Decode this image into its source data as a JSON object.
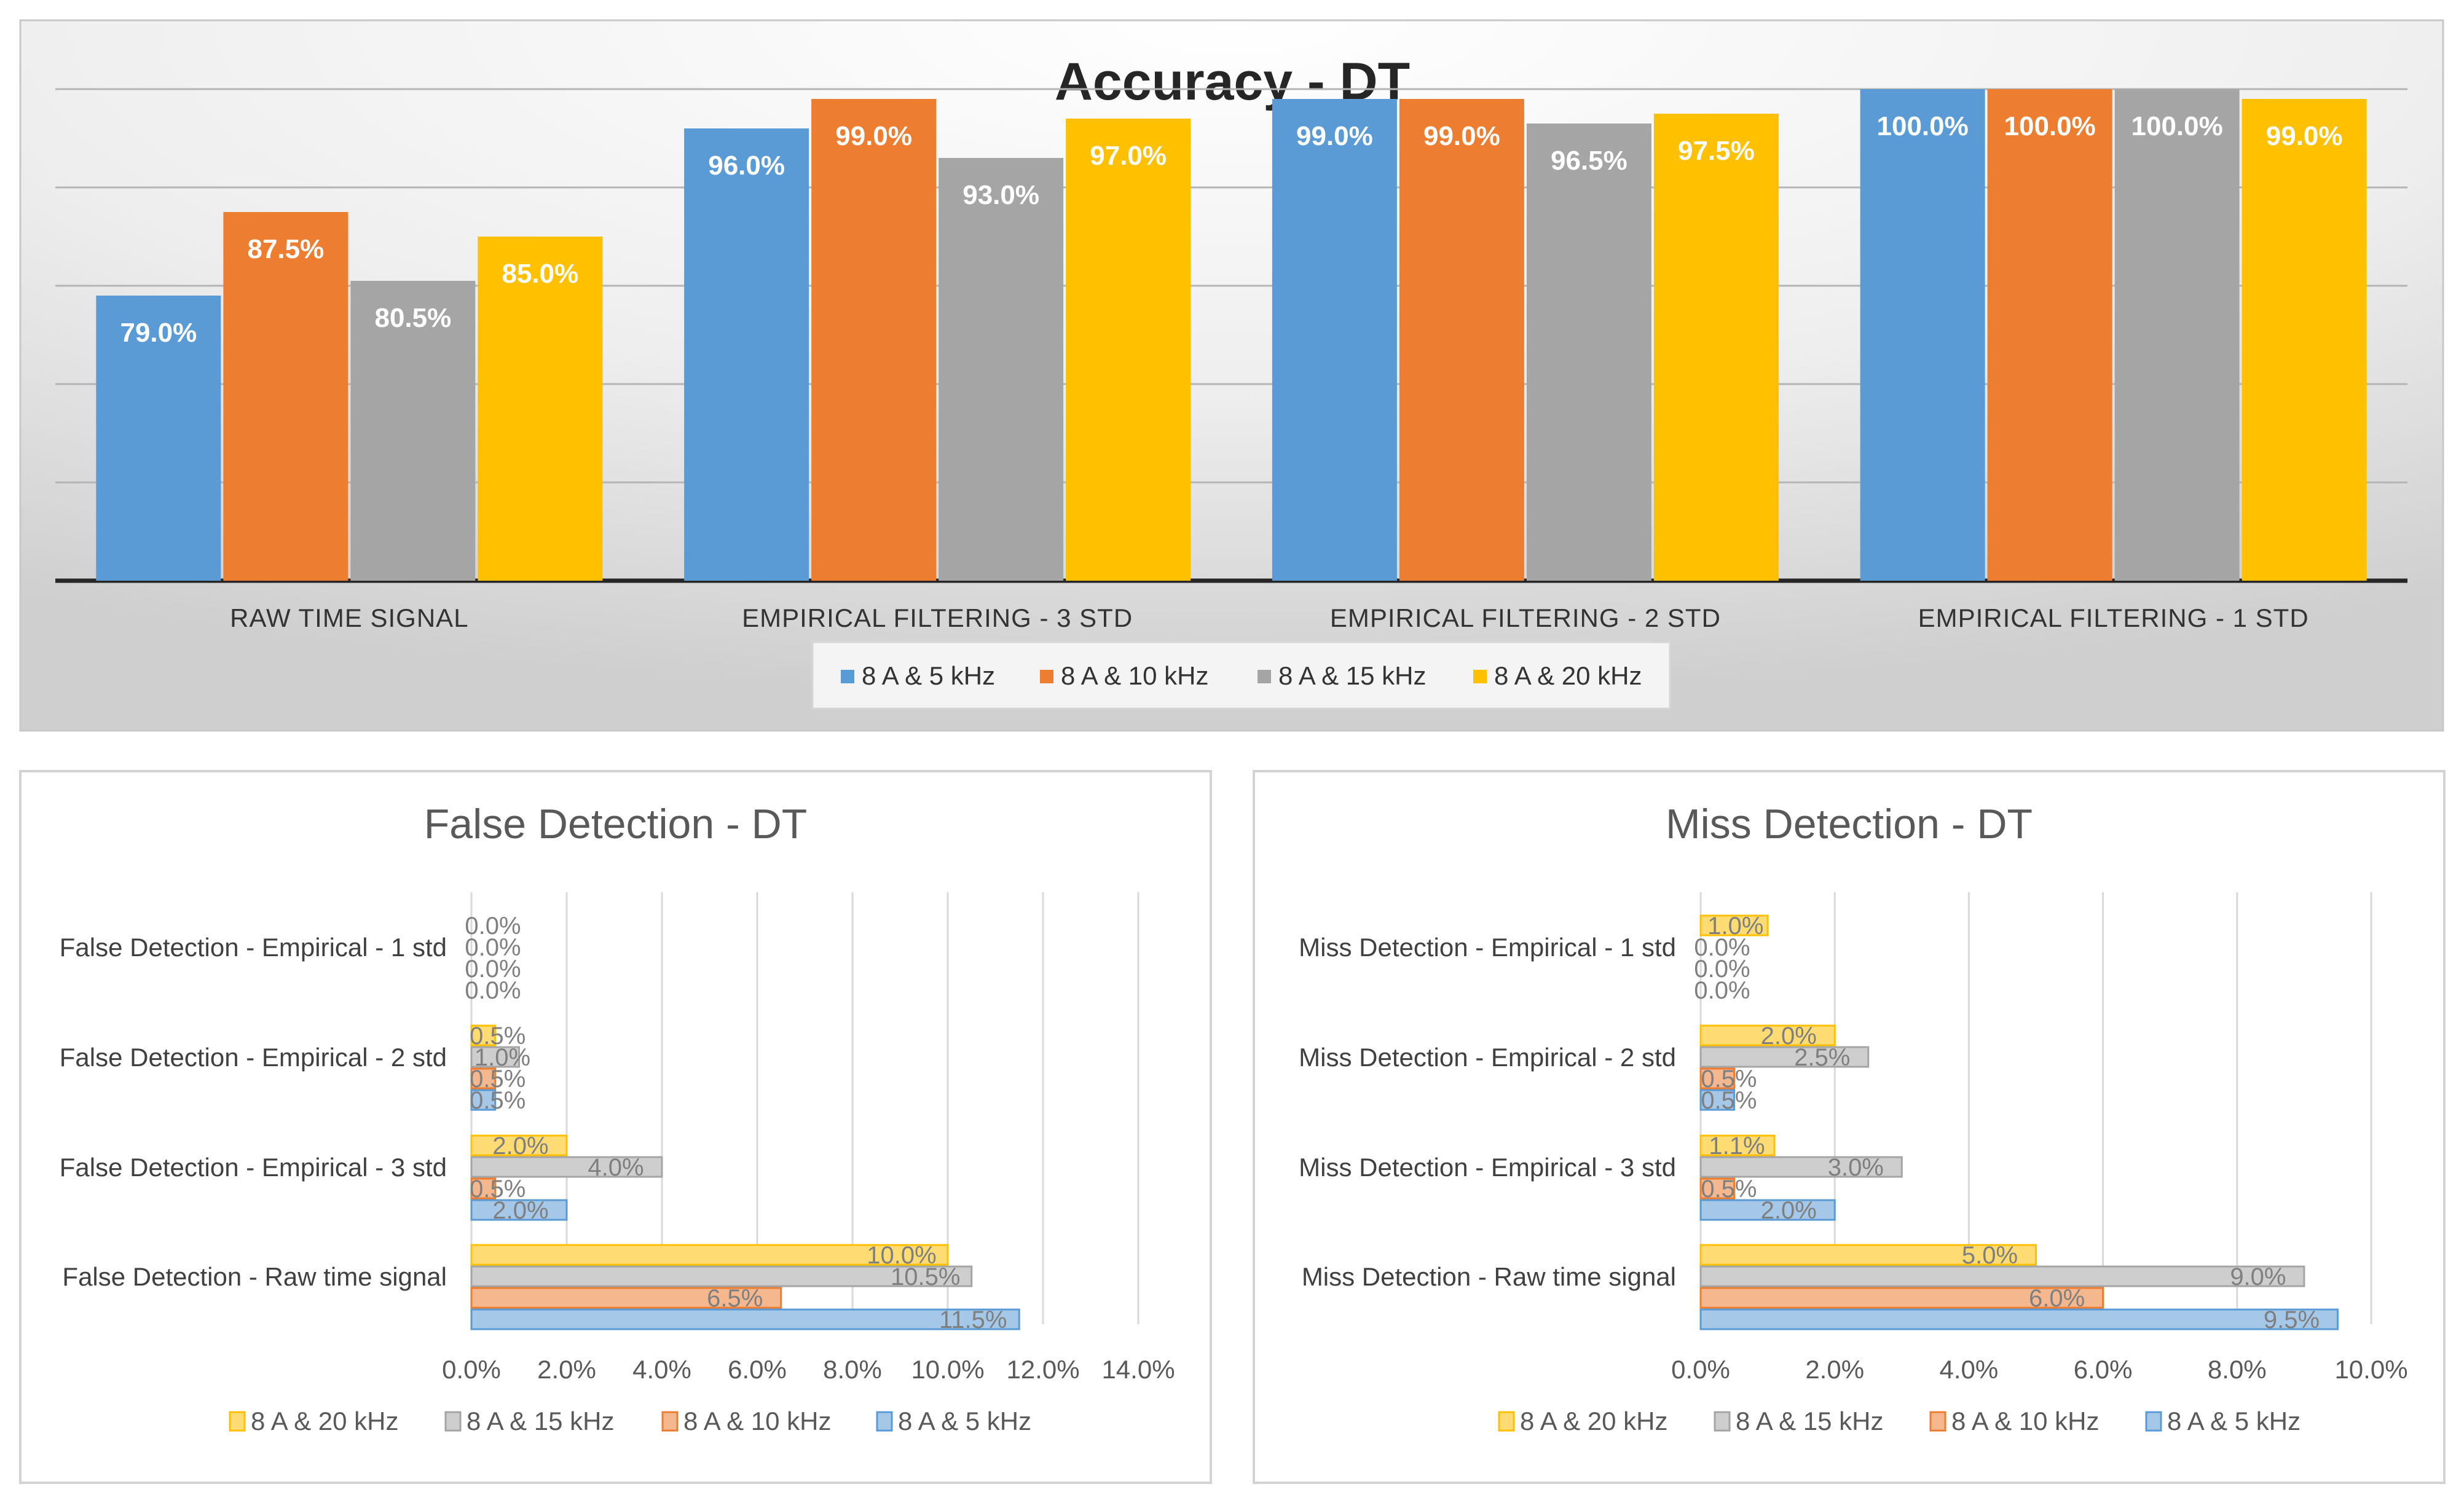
{
  "colors": {
    "blue": "#5B9BD5",
    "orange": "#ED7D31",
    "gray": "#A5A5A5",
    "yellow": "#FFC000",
    "grid": "#d0d0d0",
    "axis": "#333333"
  },
  "chart_data": [
    {
      "type": "bar",
      "orientation": "vertical",
      "title": "Accuracy - DT",
      "categories": [
        "RAW TIME SIGNAL",
        "EMPIRICAL FILTERING - 3 STD",
        "EMPIRICAL FILTERING - 2 STD",
        "EMPIRICAL FILTERING - 1 STD"
      ],
      "series": [
        {
          "name": "8 A & 5 kHz",
          "color": "#5B9BD5",
          "values": [
            79.0,
            96.0,
            99.0,
            100.0
          ]
        },
        {
          "name": "8 A & 10 kHz",
          "color": "#ED7D31",
          "values": [
            87.5,
            99.0,
            99.0,
            100.0
          ]
        },
        {
          "name": "8 A & 15 kHz",
          "color": "#A5A5A5",
          "values": [
            80.5,
            93.0,
            96.5,
            100.0
          ]
        },
        {
          "name": "8 A & 20 kHz",
          "color": "#FFC000",
          "values": [
            85.0,
            97.0,
            97.5,
            99.0
          ]
        }
      ],
      "labels": [
        [
          "79.0%",
          "96.0%",
          "99.0%",
          "100.0%"
        ],
        [
          "87.5%",
          "99.0%",
          "99.0%",
          "100.0%"
        ],
        [
          "80.5%",
          "93.0%",
          "96.5%",
          "100.0%"
        ],
        [
          "85.0%",
          "97.0%",
          "97.5%",
          "99.0%"
        ]
      ],
      "ylim": [
        50,
        100
      ],
      "grid": true,
      "legend": "bottom"
    },
    {
      "type": "bar",
      "orientation": "horizontal",
      "title": "False Detection  - DT",
      "categories": [
        "False Detection - Empirical - 1 std",
        "False Detection - Empirical - 2 std",
        "False Detection - Empirical - 3 std",
        "False Detection - Raw time signal"
      ],
      "series": [
        {
          "name": "8 A & 20 kHz",
          "color": "#FFC000",
          "values": [
            0.0,
            0.5,
            2.0,
            10.0
          ]
        },
        {
          "name": "8 A & 15 kHz",
          "color": "#A5A5A5",
          "values": [
            0.0,
            1.0,
            4.0,
            10.5
          ]
        },
        {
          "name": "8 A & 10 kHz",
          "color": "#ED7D31",
          "values": [
            0.0,
            0.5,
            0.5,
            6.5
          ]
        },
        {
          "name": "8 A & 5 kHz",
          "color": "#5B9BD5",
          "values": [
            0.0,
            0.5,
            2.0,
            11.5
          ]
        }
      ],
      "labels": [
        [
          "0.0%",
          "0.5%",
          "2.0%",
          "10.0%"
        ],
        [
          "0.0%",
          "1.0%",
          "4.0%",
          "10.5%"
        ],
        [
          "0.0%",
          "0.5%",
          "0.5%",
          "6.5%"
        ],
        [
          "0.0%",
          "0.5%",
          "2.0%",
          "11.5%"
        ]
      ],
      "xlim": [
        0,
        14
      ],
      "ticks": [
        "0.0%",
        "2.0%",
        "4.0%",
        "6.0%",
        "8.0%",
        "10.0%",
        "12.0%",
        "14.0%"
      ],
      "grid": true,
      "legend": "bottom"
    },
    {
      "type": "bar",
      "orientation": "horizontal",
      "title": "Miss Detection  - DT",
      "categories": [
        "Miss Detection - Empirical - 1 std",
        "Miss Detection - Empirical - 2 std",
        "Miss Detection - Empirical - 3 std",
        "Miss Detection - Raw time signal"
      ],
      "series": [
        {
          "name": "8 A & 20 kHz",
          "color": "#FFC000",
          "values": [
            1.0,
            2.0,
            1.1,
            5.0
          ]
        },
        {
          "name": "8 A & 15 kHz",
          "color": "#A5A5A5",
          "values": [
            0.0,
            2.5,
            3.0,
            9.0
          ]
        },
        {
          "name": "8 A & 10 kHz",
          "color": "#ED7D31",
          "values": [
            0.0,
            0.5,
            0.5,
            6.0
          ]
        },
        {
          "name": "8 A & 5 kHz",
          "color": "#5B9BD5",
          "values": [
            0.0,
            0.5,
            2.0,
            9.5
          ]
        }
      ],
      "labels": [
        [
          "1.0%",
          "2.0%",
          "1.1%",
          "5.0%"
        ],
        [
          "0.0%",
          "2.5%",
          "3.0%",
          "9.0%"
        ],
        [
          "0.0%",
          "0.5%",
          "0.5%",
          "6.0%"
        ],
        [
          "0.0%",
          "0.5%",
          "2.0%",
          "9.5%"
        ]
      ],
      "xlim": [
        0,
        10
      ],
      "ticks": [
        "0.0%",
        "2.0%",
        "4.0%",
        "6.0%",
        "8.0%",
        "10.0%"
      ],
      "grid": true,
      "legend": "bottom"
    }
  ]
}
